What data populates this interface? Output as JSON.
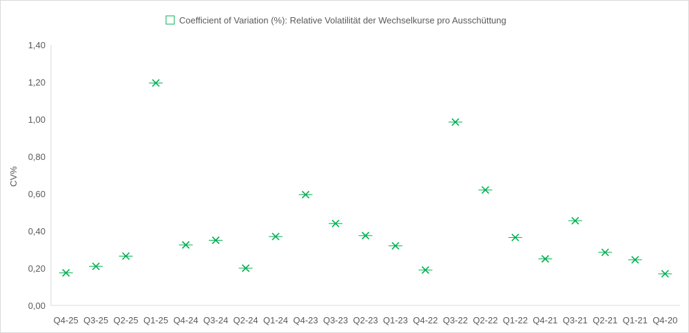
{
  "chart_data": {
    "type": "scatter",
    "title": "",
    "ylabel": "CV%",
    "xlabel": "",
    "ylim": [
      0,
      1.4
    ],
    "y_ticks": [
      "0,00",
      "0,20",
      "0,40",
      "0,60",
      "0,80",
      "1,00",
      "1,20",
      "1,40"
    ],
    "grid": false,
    "legend_position": "top",
    "marker": "x",
    "color": "#00b050",
    "categories": [
      "Q4-25",
      "Q3-25",
      "Q2-25",
      "Q1-25",
      "Q4-24",
      "Q3-24",
      "Q2-24",
      "Q1-24",
      "Q4-23",
      "Q3-23",
      "Q2-23",
      "Q1-23",
      "Q4-22",
      "Q3-22",
      "Q2-22",
      "Q1-22",
      "Q4-21",
      "Q3-21",
      "Q2-21",
      "Q1-21",
      "Q4-20"
    ],
    "series": [
      {
        "name": "Coefficient of Variation (%): Relative Volatilität der Wechselkurse pro Ausschüttung",
        "values": [
          0.175,
          0.21,
          0.265,
          1.195,
          0.325,
          0.35,
          0.2,
          0.37,
          0.595,
          0.44,
          0.375,
          0.32,
          0.19,
          0.985,
          0.62,
          0.365,
          0.25,
          0.455,
          0.285,
          0.245,
          0.17
        ]
      }
    ]
  }
}
